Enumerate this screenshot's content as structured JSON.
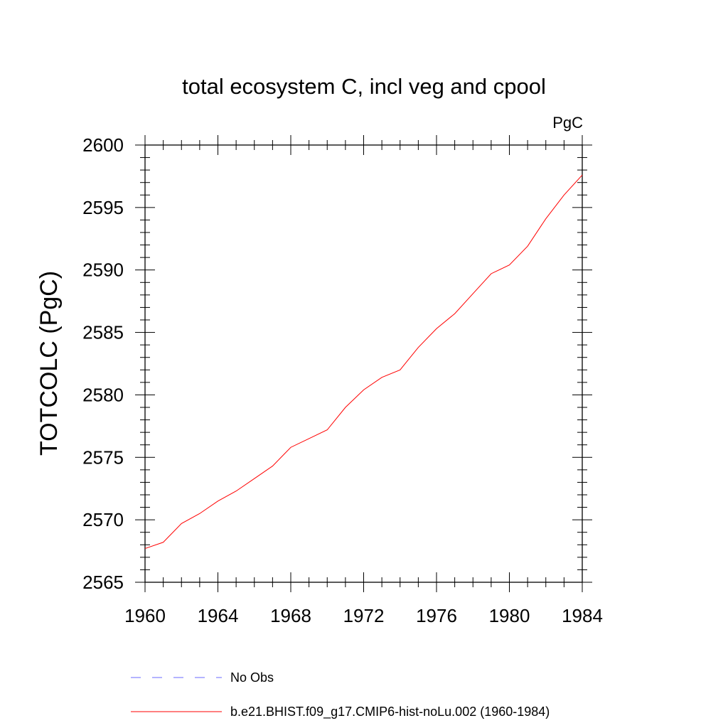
{
  "chart_data": {
    "type": "line",
    "title": "total ecosystem C, incl veg and cpool",
    "units_label": "PgC",
    "xlabel": "",
    "ylabel": "TOTCOLC  (PgC)",
    "xlim": [
      1960,
      1984
    ],
    "ylim": [
      2565,
      2600
    ],
    "x_ticks": [
      1960,
      1964,
      1968,
      1972,
      1976,
      1980,
      1984
    ],
    "y_ticks": [
      2565,
      2570,
      2575,
      2580,
      2585,
      2590,
      2595,
      2600
    ],
    "grid": false,
    "legend_position": "bottom",
    "x": [
      1960,
      1961,
      1962,
      1963,
      1964,
      1965,
      1966,
      1967,
      1968,
      1969,
      1970,
      1971,
      1972,
      1973,
      1974,
      1975,
      1976,
      1977,
      1978,
      1979,
      1980,
      1981,
      1982,
      1983,
      1984
    ],
    "series": [
      {
        "name": "b.e21.BHIST.f09_g17.CMIP6-hist-noLu.002 (1960-1984)",
        "color": "#ff0000",
        "style": "solid",
        "values": [
          2567.7,
          2568.2,
          2569.7,
          2570.5,
          2571.5,
          2572.3,
          2573.3,
          2574.3,
          2575.8,
          2576.5,
          2577.2,
          2579.0,
          2580.4,
          2581.4,
          2582.0,
          2583.8,
          2585.3,
          2586.5,
          2588.1,
          2589.7,
          2590.4,
          2591.9,
          2594.1,
          2596.0,
          2597.6
        ]
      }
    ],
    "legend": [
      {
        "label": "No Obs",
        "color": "#6a6aff",
        "style": "dashed"
      },
      {
        "label": "b.e21.BHIST.f09_g17.CMIP6-hist-noLu.002 (1960-1984)",
        "color": "#ff0000",
        "style": "solid"
      }
    ]
  }
}
